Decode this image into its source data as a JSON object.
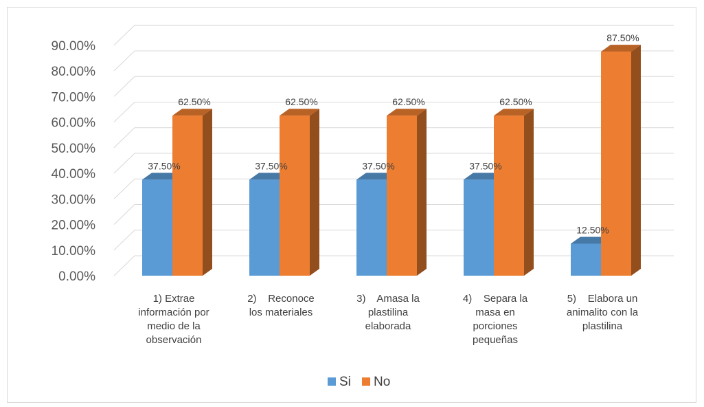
{
  "chart_data": {
    "type": "bar",
    "style": "3d-clustered-column",
    "categories": [
      [
        "1) Extrae",
        "información por",
        "medio de la",
        "observación"
      ],
      [
        "2)    Reconoce",
        "los materiales"
      ],
      [
        "3)    Amasa la",
        "plastilina",
        "elaborada"
      ],
      [
        "4)    Separa la",
        "masa en",
        "porciones",
        "pequeñas"
      ],
      [
        "5)    Elabora un",
        "animalito con la",
        "plastilina"
      ]
    ],
    "series": [
      {
        "name": "Si",
        "color": "#5b9bd5",
        "values": [
          37.5,
          37.5,
          37.5,
          37.5,
          12.5
        ],
        "labels": [
          "37.50%",
          "37.50%",
          "37.50%",
          "37.50%",
          "12.50%"
        ]
      },
      {
        "name": "No",
        "color": "#ed7d31",
        "values": [
          62.5,
          62.5,
          62.5,
          62.5,
          87.5
        ],
        "labels": [
          "62.50%",
          "62.50%",
          "62.50%",
          "62.50%",
          "87.50%"
        ]
      }
    ],
    "yticks": [
      "0.00%",
      "10.00%",
      "20.00%",
      "30.00%",
      "40.00%",
      "50.00%",
      "60.00%",
      "70.00%",
      "80.00%",
      "90.00%"
    ],
    "ylim": [
      0,
      90
    ],
    "grid": true,
    "legend": "bottom"
  }
}
